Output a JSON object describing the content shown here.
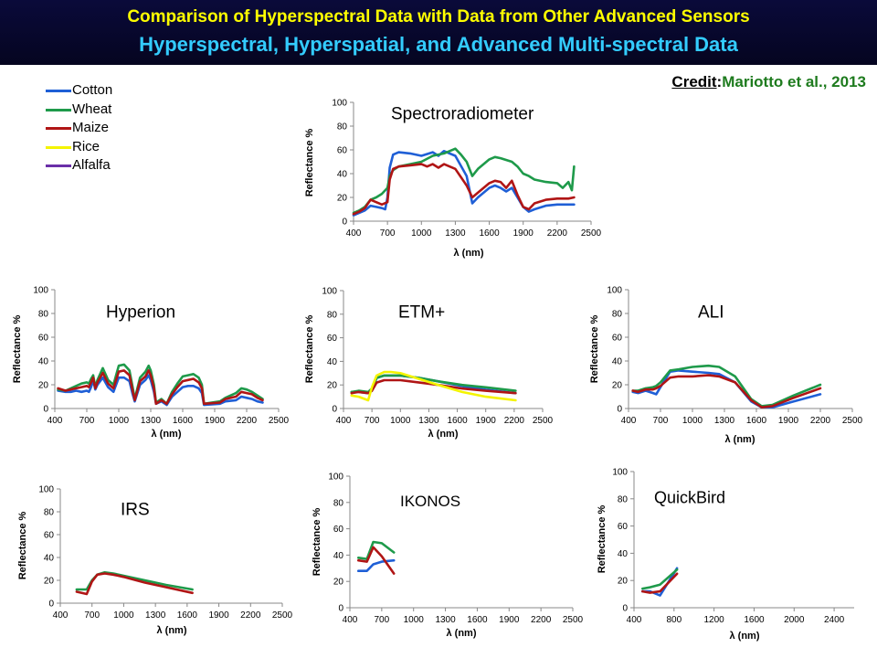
{
  "header": {
    "title": "Comparison of Hyperspectral Data with Data from Other Advanced Sensors",
    "subtitle": "Hyperspectral, Hyperspatial, and Advanced Multi-spectral Data"
  },
  "credit": {
    "label": "Credit",
    "separator": ":",
    "value": "Mariotto et al., 2013"
  },
  "colors": {
    "cotton": "#1f5fd6",
    "wheat": "#1e9a4a",
    "maize": "#b01515",
    "rice": "#f4f400",
    "alfalfa": "#6a2fa8"
  },
  "legend": [
    {
      "key": "cotton",
      "label": "Cotton"
    },
    {
      "key": "wheat",
      "label": "Wheat"
    },
    {
      "key": "maize",
      "label": "Maize"
    },
    {
      "key": "rice",
      "label": "Rice"
    },
    {
      "key": "alfalfa",
      "label": "Alfalfa"
    }
  ],
  "chart_data": [
    {
      "id": "spectroradiometer",
      "type": "line",
      "title": "Spectroradiometer",
      "xlabel": "λ (nm)",
      "ylabel": "Reflectance %",
      "xlim": [
        400,
        2500
      ],
      "ylim": [
        0,
        100
      ],
      "xticks": [
        400,
        700,
        1000,
        1300,
        1600,
        1900,
        2200,
        2500
      ],
      "yticks": [
        0,
        20,
        40,
        60,
        80,
        100
      ],
      "series": [
        {
          "key": "cotton",
          "x": [
            400,
            450,
            500,
            550,
            600,
            650,
            680,
            700,
            720,
            750,
            800,
            900,
            1000,
            1100,
            1150,
            1200,
            1300,
            1400,
            1450,
            1500,
            1600,
            1650,
            1700,
            1750,
            1800,
            1850,
            1900,
            1950,
            2000,
            2100,
            2200,
            2300,
            2350
          ],
          "y": [
            5,
            7,
            9,
            13,
            12,
            11,
            10,
            20,
            45,
            56,
            58,
            57,
            55,
            58,
            55,
            59,
            55,
            38,
            15,
            20,
            28,
            30,
            28,
            25,
            28,
            20,
            12,
            8,
            10,
            13,
            14,
            14,
            14
          ]
        },
        {
          "key": "wheat",
          "x": [
            400,
            450,
            500,
            550,
            600,
            650,
            700,
            720,
            750,
            800,
            900,
            1000,
            1100,
            1200,
            1300,
            1350,
            1400,
            1450,
            1500,
            1600,
            1650,
            1700,
            1800,
            1850,
            1900,
            1950,
            2000,
            2100,
            2200,
            2250,
            2300,
            2330,
            2350
          ],
          "y": [
            7,
            9,
            12,
            18,
            20,
            23,
            28,
            38,
            43,
            46,
            48,
            50,
            55,
            57,
            61,
            56,
            50,
            38,
            44,
            52,
            54,
            53,
            50,
            46,
            40,
            38,
            35,
            33,
            32,
            28,
            33,
            26,
            46
          ]
        },
        {
          "key": "maize",
          "x": [
            400,
            450,
            500,
            550,
            600,
            650,
            700,
            720,
            750,
            800,
            900,
            1000,
            1050,
            1100,
            1150,
            1200,
            1300,
            1400,
            1450,
            1500,
            1600,
            1650,
            1700,
            1750,
            1800,
            1850,
            1900,
            1950,
            2000,
            2100,
            2200,
            2300,
            2350
          ],
          "y": [
            6,
            8,
            11,
            18,
            16,
            14,
            16,
            35,
            44,
            46,
            47,
            48,
            46,
            48,
            45,
            48,
            44,
            30,
            20,
            24,
            32,
            34,
            33,
            28,
            34,
            22,
            12,
            10,
            15,
            18,
            19,
            19,
            20
          ]
        }
      ]
    },
    {
      "id": "hyperion",
      "type": "line",
      "title": "Hyperion",
      "xlabel": "λ (nm)",
      "ylabel": "Reflectance %",
      "xlim": [
        400,
        2500
      ],
      "ylim": [
        0,
        100
      ],
      "xticks": [
        400,
        700,
        1000,
        1300,
        1600,
        1900,
        2200,
        2500
      ],
      "yticks": [
        0,
        20,
        40,
        60,
        80,
        100
      ],
      "series": [
        {
          "key": "cotton",
          "x": [
            430,
            500,
            550,
            600,
            650,
            700,
            720,
            740,
            760,
            780,
            800,
            850,
            900,
            950,
            1000,
            1050,
            1100,
            1130,
            1150,
            1200,
            1250,
            1280,
            1300,
            1330,
            1350,
            1400,
            1450,
            1500,
            1550,
            1600,
            1650,
            1700,
            1750,
            1780,
            1800,
            1950,
            2000,
            2100,
            2150,
            2200,
            2250,
            2300,
            2350
          ],
          "y": [
            15,
            14,
            14,
            15,
            14,
            15,
            14,
            18,
            24,
            16,
            20,
            26,
            18,
            14,
            26,
            26,
            23,
            12,
            6,
            20,
            24,
            28,
            24,
            14,
            4,
            6,
            3,
            10,
            14,
            18,
            19,
            19,
            17,
            13,
            3,
            4,
            6,
            7,
            10,
            9,
            8,
            6,
            5
          ]
        },
        {
          "key": "wheat",
          "x": [
            430,
            500,
            550,
            600,
            650,
            700,
            720,
            740,
            760,
            780,
            800,
            850,
            900,
            950,
            1000,
            1050,
            1100,
            1130,
            1150,
            1200,
            1250,
            1280,
            1300,
            1330,
            1350,
            1400,
            1450,
            1500,
            1550,
            1600,
            1650,
            1700,
            1750,
            1780,
            1800,
            1950,
            2000,
            2100,
            2150,
            2200,
            2250,
            2300,
            2350
          ],
          "y": [
            16,
            15,
            17,
            19,
            21,
            22,
            21,
            25,
            28,
            18,
            24,
            34,
            24,
            20,
            36,
            37,
            32,
            18,
            8,
            26,
            31,
            36,
            32,
            20,
            5,
            8,
            4,
            14,
            21,
            27,
            28,
            29,
            26,
            20,
            4,
            6,
            9,
            13,
            17,
            16,
            14,
            11,
            8
          ]
        },
        {
          "key": "maize",
          "x": [
            430,
            500,
            550,
            600,
            650,
            700,
            720,
            740,
            760,
            780,
            800,
            850,
            900,
            950,
            1000,
            1050,
            1100,
            1130,
            1150,
            1200,
            1250,
            1280,
            1300,
            1330,
            1350,
            1400,
            1450,
            1500,
            1550,
            1600,
            1650,
            1700,
            1750,
            1780,
            1800,
            1950,
            2000,
            2100,
            2150,
            2200,
            2250,
            2300,
            2350
          ],
          "y": [
            17,
            15,
            16,
            17,
            18,
            19,
            18,
            22,
            26,
            17,
            22,
            30,
            21,
            17,
            31,
            32,
            28,
            15,
            7,
            23,
            27,
            32,
            28,
            17,
            4,
            7,
            4,
            12,
            18,
            23,
            24,
            25,
            22,
            17,
            4,
            5,
            8,
            10,
            14,
            13,
            12,
            9,
            7
          ]
        }
      ]
    },
    {
      "id": "etm",
      "type": "line",
      "title": "ETM+",
      "xlabel": "λ (nm)",
      "ylabel": "Reflectance %",
      "xlim": [
        400,
        2500
      ],
      "ylim": [
        0,
        100
      ],
      "xticks": [
        400,
        700,
        1000,
        1300,
        1600,
        1900,
        2200,
        2500
      ],
      "yticks": [
        0,
        20,
        40,
        60,
        80,
        100
      ],
      "series": [
        {
          "key": "cotton",
          "x": [
            485,
            560,
            660,
            700,
            750,
            830,
            1000,
            1200,
            1400,
            1650,
            1900,
            2215
          ],
          "y": [
            14,
            14,
            13,
            15,
            26,
            28,
            28,
            26,
            23,
            19,
            16,
            13
          ]
        },
        {
          "key": "wheat",
          "x": [
            485,
            560,
            660,
            700,
            750,
            830,
            1000,
            1200,
            1400,
            1650,
            1900,
            2215
          ],
          "y": [
            14,
            15,
            14,
            17,
            26,
            28,
            28,
            26,
            23,
            20,
            18,
            15
          ]
        },
        {
          "key": "maize",
          "x": [
            485,
            560,
            660,
            700,
            750,
            830,
            1000,
            1200,
            1400,
            1650,
            1900,
            2215
          ],
          "y": [
            13,
            14,
            13,
            15,
            22,
            24,
            24,
            22,
            20,
            17,
            15,
            13
          ]
        },
        {
          "key": "rice",
          "x": [
            485,
            560,
            660,
            700,
            750,
            830,
            900,
            1000,
            1200,
            1400,
            1650,
            1900,
            2215
          ],
          "y": [
            11,
            10,
            7,
            18,
            28,
            31,
            31,
            30,
            25,
            20,
            14,
            10,
            7
          ]
        }
      ]
    },
    {
      "id": "ali",
      "type": "line",
      "title": "ALI",
      "xlabel": "λ (nm)",
      "ylabel": "Reflectance %",
      "xlim": [
        400,
        2500
      ],
      "ylim": [
        0,
        100
      ],
      "xticks": [
        400,
        700,
        1000,
        1300,
        1600,
        1900,
        2200,
        2500
      ],
      "yticks": [
        0,
        20,
        40,
        60,
        80,
        100
      ],
      "series": [
        {
          "key": "cotton",
          "x": [
            440,
            490,
            560,
            630,
            660,
            700,
            790,
            870,
            1000,
            1150,
            1250,
            1400,
            1550,
            1650,
            1750,
            1950,
            2200
          ],
          "y": [
            14,
            13,
            15,
            13,
            12,
            18,
            31,
            32,
            31,
            30,
            29,
            22,
            6,
            1,
            1,
            6,
            12
          ]
        },
        {
          "key": "wheat",
          "x": [
            440,
            490,
            560,
            630,
            660,
            700,
            790,
            870,
            1000,
            1150,
            1250,
            1400,
            1550,
            1650,
            1750,
            1950,
            2200
          ],
          "y": [
            15,
            15,
            17,
            18,
            19,
            22,
            32,
            33,
            35,
            36,
            35,
            27,
            8,
            2,
            3,
            11,
            20
          ]
        },
        {
          "key": "maize",
          "x": [
            440,
            490,
            560,
            630,
            660,
            700,
            790,
            870,
            1000,
            1150,
            1250,
            1400,
            1550,
            1650,
            1750,
            1950,
            2200
          ],
          "y": [
            15,
            14,
            16,
            16,
            17,
            19,
            26,
            27,
            27,
            28,
            27,
            22,
            7,
            1,
            2,
            9,
            17
          ]
        }
      ]
    },
    {
      "id": "irs",
      "type": "line",
      "title": "IRS",
      "xlabel": "λ (nm)",
      "ylabel": "Reflectance %",
      "xlim": [
        400,
        2500
      ],
      "ylim": [
        0,
        100
      ],
      "xticks": [
        400,
        700,
        1000,
        1300,
        1600,
        1900,
        2200,
        2500
      ],
      "yticks": [
        0,
        20,
        40,
        60,
        80,
        100
      ],
      "series": [
        {
          "key": "wheat",
          "x": [
            555,
            650,
            700,
            750,
            820,
            900,
            1000,
            1200,
            1400,
            1650
          ],
          "y": [
            12,
            12,
            20,
            25,
            27,
            26,
            24,
            20,
            16,
            12
          ]
        },
        {
          "key": "maize",
          "x": [
            555,
            650,
            700,
            750,
            820,
            900,
            1000,
            1200,
            1400,
            1650
          ],
          "y": [
            10,
            8,
            19,
            25,
            26,
            25,
            23,
            18,
            14,
            9
          ]
        }
      ]
    },
    {
      "id": "ikonos",
      "type": "line",
      "title": "IKONOS",
      "xlabel": "λ (nm)",
      "ylabel": "Reflectance %",
      "xlim": [
        400,
        2500
      ],
      "ylim": [
        0,
        100
      ],
      "xticks": [
        400,
        700,
        1000,
        1300,
        1600,
        1900,
        2200,
        2500
      ],
      "yticks": [
        0,
        20,
        40,
        60,
        80,
        100
      ],
      "series": [
        {
          "key": "cotton",
          "x": [
            480,
            560,
            620,
            700,
            815
          ],
          "y": [
            28,
            28,
            33,
            35,
            36
          ]
        },
        {
          "key": "wheat",
          "x": [
            480,
            560,
            620,
            700,
            815
          ],
          "y": [
            38,
            37,
            50,
            49,
            42
          ]
        },
        {
          "key": "maize",
          "x": [
            480,
            560,
            620,
            700,
            815
          ],
          "y": [
            36,
            35,
            46,
            39,
            26
          ]
        }
      ]
    },
    {
      "id": "quickbird",
      "type": "line",
      "title": "QuickBird",
      "xlabel": "λ (nm)",
      "ylabel": "Reflectance %",
      "xlim": [
        400,
        2600
      ],
      "ylim": [
        0,
        100
      ],
      "xticks": [
        400,
        800,
        1200,
        1600,
        2000,
        2400
      ],
      "yticks": [
        0,
        20,
        40,
        60,
        80,
        100
      ],
      "series": [
        {
          "key": "cotton",
          "x": [
            485,
            560,
            660,
            830
          ],
          "y": [
            12,
            12,
            9,
            29
          ]
        },
        {
          "key": "wheat",
          "x": [
            485,
            560,
            660,
            830
          ],
          "y": [
            14,
            15,
            17,
            28
          ]
        },
        {
          "key": "maize",
          "x": [
            485,
            560,
            660,
            830
          ],
          "y": [
            12,
            11,
            12,
            25
          ]
        }
      ]
    }
  ]
}
